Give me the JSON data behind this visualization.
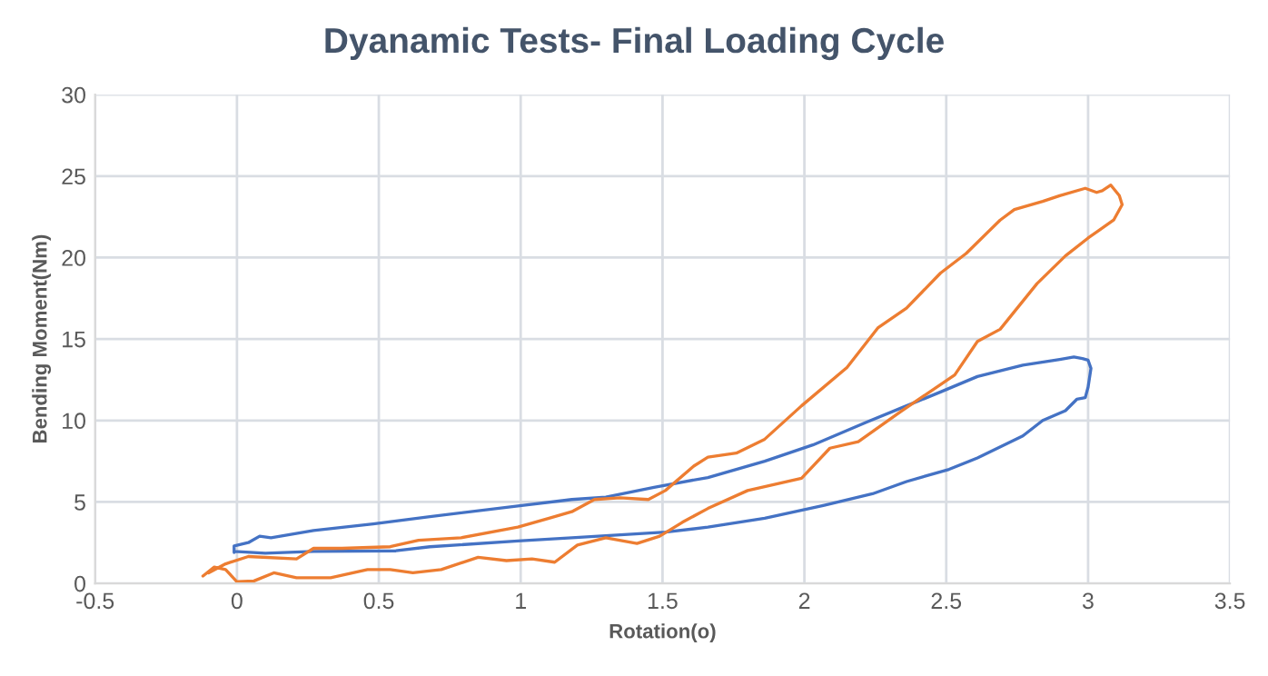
{
  "chart_data": {
    "type": "line",
    "title": "Dyanamic Tests- Final Loading Cycle",
    "xlabel": "Rotation(o)",
    "ylabel": "Bending Moment(Nm)",
    "xlim": [
      -0.5,
      3.5
    ],
    "xticks": [
      -0.5,
      0,
      0.5,
      1,
      1.5,
      2,
      2.5,
      3,
      3.5
    ],
    "ylim": [
      0,
      30
    ],
    "yticks": [
      0,
      5,
      10,
      15,
      20,
      25,
      30
    ],
    "grid": true,
    "legend": false,
    "marker": "none",
    "line_style": "solid",
    "series": [
      {
        "color": "#4472c4",
        "x": [
          -0.01,
          0.1,
          0.27,
          0.56,
          0.68,
          0.99,
          1.18,
          1.51,
          1.66,
          1.86,
          2.07,
          2.24,
          2.36,
          2.51,
          2.61,
          2.77,
          2.84,
          2.92,
          2.96,
          2.99,
          3.0,
          3.01,
          3.0,
          2.98,
          2.95,
          2.9,
          2.77,
          2.69,
          2.61,
          2.48,
          2.36,
          2.22,
          2.03,
          1.86,
          1.66,
          1.47,
          1.3,
          1.18,
          0.99,
          0.68,
          0.48,
          0.27,
          0.12,
          0.08,
          0.04,
          -0.01,
          -0.01
        ],
        "values": [
          1.96,
          1.85,
          1.96,
          2.0,
          2.25,
          2.6,
          2.8,
          3.15,
          3.45,
          4.0,
          4.8,
          5.5,
          6.25,
          7.0,
          7.7,
          9.05,
          10.0,
          10.6,
          11.3,
          11.4,
          12.05,
          13.2,
          13.7,
          13.8,
          13.9,
          13.75,
          13.4,
          13.05,
          12.7,
          11.75,
          10.9,
          9.9,
          8.5,
          7.5,
          6.5,
          5.9,
          5.3,
          5.15,
          4.75,
          4.1,
          3.65,
          3.25,
          2.8,
          2.9,
          2.5,
          2.3,
          1.9
        ]
      },
      {
        "color": "#ed7d31",
        "x": [
          -0.12,
          -0.08,
          -0.04,
          0,
          0.06,
          0.13,
          0.21,
          0.33,
          0.46,
          0.54,
          0.62,
          0.72,
          0.85,
          0.95,
          1.04,
          1.12,
          1.2,
          1.3,
          1.41,
          1.49,
          1.57,
          1.66,
          1.8,
          1.99,
          2.09,
          2.19,
          2.34,
          2.53,
          2.61,
          2.69,
          2.82,
          2.92,
          3.0,
          3.09,
          3.12,
          3.11,
          3.08,
          3.05,
          3.03,
          2.99,
          2.9,
          2.84,
          2.74,
          2.69,
          2.57,
          2.48,
          2.36,
          2.26,
          2.15,
          1.99,
          1.86,
          1.76,
          1.66,
          1.61,
          1.51,
          1.45,
          1.35,
          1.26,
          1.18,
          1.1,
          0.99,
          0.79,
          0.64,
          0.54,
          0.37,
          0.27,
          0.21,
          0.04,
          -0.04,
          -0.1
        ],
        "values": [
          0.45,
          1.0,
          0.85,
          0.1,
          0.15,
          0.65,
          0.35,
          0.35,
          0.85,
          0.85,
          0.65,
          0.85,
          1.6,
          1.4,
          1.5,
          1.3,
          2.35,
          2.8,
          2.45,
          2.9,
          3.75,
          4.6,
          5.7,
          6.45,
          8.3,
          8.7,
          10.55,
          12.8,
          14.85,
          15.6,
          18.4,
          20.1,
          21.2,
          22.3,
          23.25,
          23.8,
          24.45,
          24.1,
          24.0,
          24.25,
          23.8,
          23.45,
          22.95,
          22.3,
          20.25,
          19.05,
          16.9,
          15.7,
          13.25,
          10.9,
          8.85,
          8.0,
          7.75,
          7.2,
          5.7,
          5.15,
          5.25,
          5.15,
          4.4,
          4.0,
          3.45,
          2.8,
          2.65,
          2.25,
          2.15,
          2.15,
          1.5,
          1.65,
          1.2,
          0.65
        ]
      }
    ]
  }
}
